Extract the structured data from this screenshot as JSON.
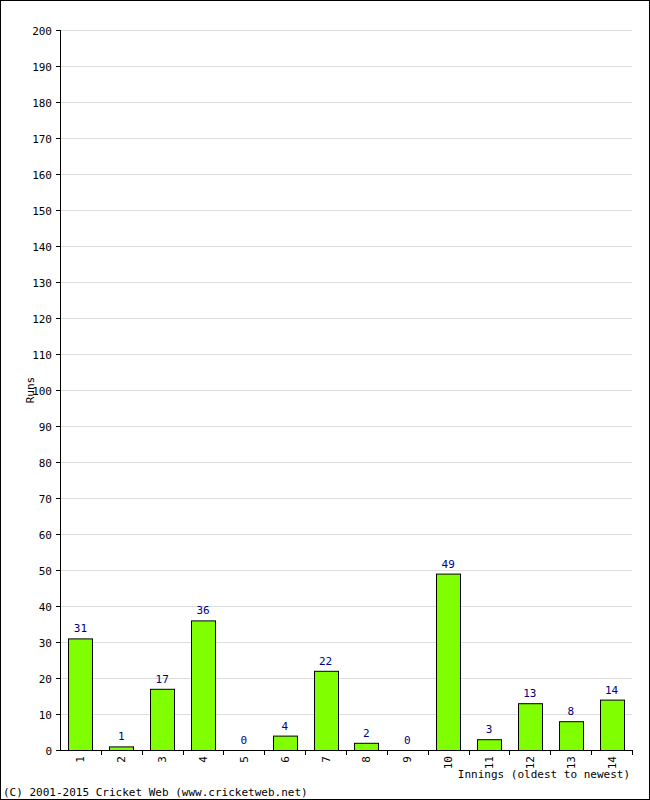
{
  "chart_data": {
    "type": "bar",
    "categories": [
      "1",
      "2",
      "3",
      "4",
      "5",
      "6",
      "7",
      "8",
      "9",
      "10",
      "11",
      "12",
      "13",
      "14"
    ],
    "values": [
      31,
      1,
      17,
      36,
      0,
      4,
      22,
      2,
      0,
      49,
      3,
      13,
      8,
      14
    ],
    "color": "#80ff00",
    "ylim": [
      0,
      200
    ],
    "yticks": [
      0,
      10,
      20,
      30,
      40,
      50,
      60,
      70,
      80,
      90,
      100,
      110,
      120,
      130,
      140,
      150,
      160,
      170,
      180,
      190,
      200
    ],
    "grid": true,
    "data_labels": true,
    "y_label": "Runs",
    "x_label": "Innings (oldest to newest)",
    "source": "(C) 2001-2015 Cricket Web (www.cricketweb.net)"
  }
}
